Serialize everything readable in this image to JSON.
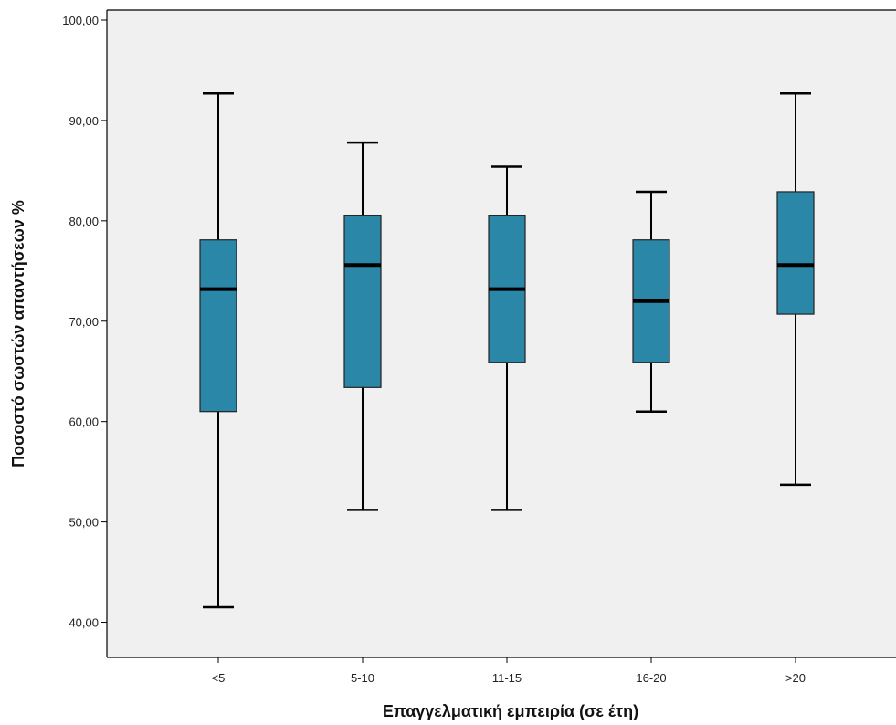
{
  "chart_data": {
    "type": "boxplot",
    "xlabel": "Επαγγελματική εμπειρία (σε έτη)",
    "ylabel": "Ποσοστό σωστών απαντήσεων %",
    "ylim": [
      36.5,
      101
    ],
    "yticks": [
      "40,00",
      "50,00",
      "60,00",
      "70,00",
      "80,00",
      "90,00",
      "100,00"
    ],
    "ytick_values": [
      40,
      50,
      60,
      70,
      80,
      90,
      100
    ],
    "categories": [
      "<5",
      "5-10",
      "11-15",
      "16-20",
      ">20"
    ],
    "boxes": [
      {
        "min": 41.5,
        "q1": 61.0,
        "median": 73.2,
        "q3": 78.1,
        "max": 92.7
      },
      {
        "min": 51.2,
        "q1": 63.4,
        "median": 75.6,
        "q3": 80.5,
        "max": 87.8
      },
      {
        "min": 51.2,
        "q1": 65.9,
        "median": 73.2,
        "q3": 80.5,
        "max": 85.4
      },
      {
        "min": 61.0,
        "q1": 65.9,
        "median": 72.0,
        "q3": 78.1,
        "max": 82.9
      },
      {
        "min": 53.7,
        "q1": 70.7,
        "median": 75.6,
        "q3": 82.9,
        "max": 92.7
      }
    ],
    "grid": false,
    "colors": {
      "box_fill": "#2a87a8",
      "plot_bg": "#f0f0f0",
      "line": "#000000"
    }
  }
}
